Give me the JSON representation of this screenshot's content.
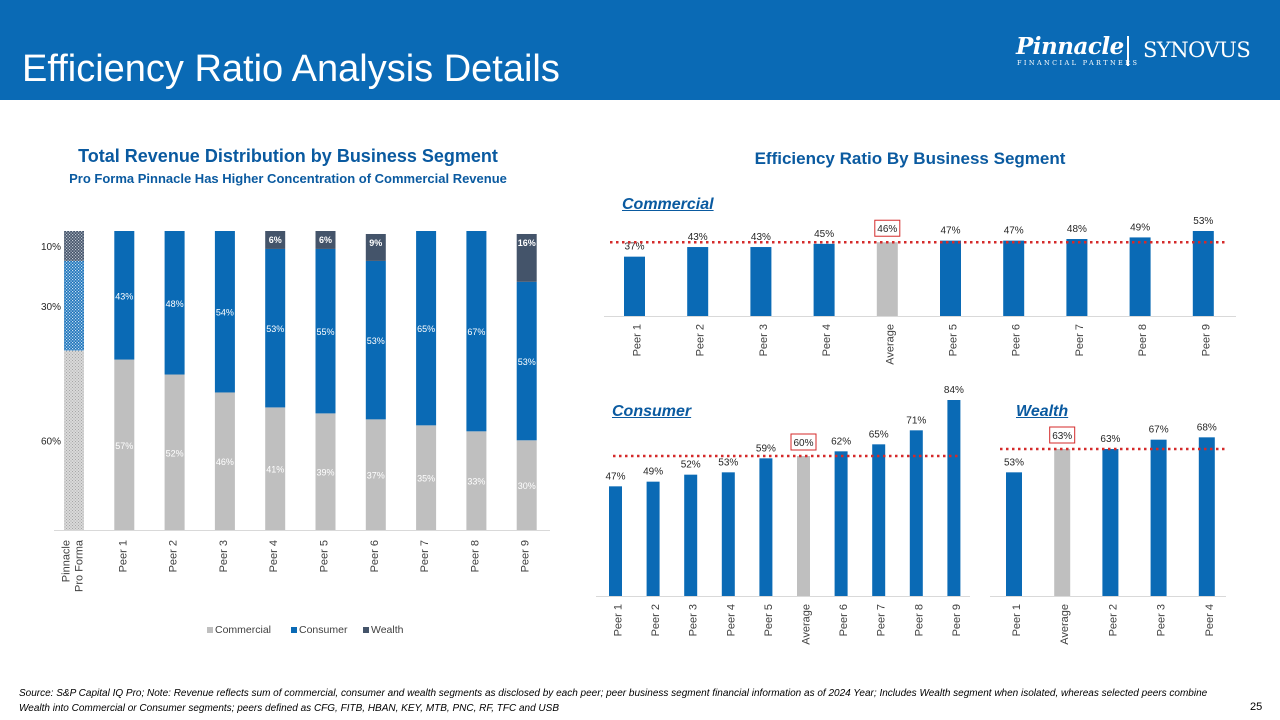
{
  "slide": {
    "title": "Efficiency Ratio Analysis Details",
    "page_number": "25",
    "footnote": "Source: S&P Capital IQ Pro; Note: Revenue reflects sum of commercial, consumer and wealth segments as disclosed by each peer; peer business segment financial information as of 2024 Year; Includes Wealth segment when isolated, whereas selected peers combine Wealth into Commercial or Consumer segments; peers defined as CFG, FITB, HBAN, KEY, MTB, PNC, RF, TFC and USB"
  },
  "logos": {
    "pinnacle": "Pinnacle",
    "pinnacle_sub": "FINANCIAL PARTNERS",
    "synovus": "SYNOVUS"
  },
  "left_panel": {
    "title": "Total Revenue Distribution by Business Segment",
    "subtitle": "Pro Forma Pinnacle Has Higher Concentration of Commercial Revenue"
  },
  "right_panel": {
    "title": "Efficiency Ratio By Business Segment",
    "commercial_label": "Commercial",
    "consumer_label": "Consumer",
    "wealth_label": "Wealth"
  },
  "colors": {
    "banner": "#0a6ab5",
    "commercial": "#bfbfbf",
    "consumer": "#0a6ab5",
    "wealth": "#44546a",
    "average_bar": "#bfbfbf",
    "dotted_line": "#d42a2a",
    "accent_text": "#0a5aa0"
  },
  "chart_data": [
    {
      "id": "revenue-distribution",
      "type": "bar",
      "stacked": true,
      "percent_stacked": true,
      "categories": [
        "Pinnacle Pro Forma",
        "Peer 1",
        "Peer 2",
        "Peer 3",
        "Peer 4",
        "Peer 5",
        "Peer 6",
        "Peer 7",
        "Peer 8",
        "Peer 9"
      ],
      "series": [
        {
          "name": "Commercial",
          "values": [
            60,
            57,
            52,
            46,
            41,
            39,
            37,
            35,
            33,
            30
          ]
        },
        {
          "name": "Consumer",
          "values": [
            30,
            43,
            48,
            54,
            53,
            55,
            53,
            65,
            67,
            53
          ]
        },
        {
          "name": "Wealth",
          "values": [
            10,
            0,
            0,
            0,
            6,
            6,
            9,
            0,
            0,
            16
          ]
        }
      ],
      "label_format": "{v}%",
      "legend": "bottom",
      "ylim": [
        0,
        100
      ]
    },
    {
      "id": "commercial-efficiency",
      "type": "bar",
      "categories": [
        "Peer 1",
        "Peer 2",
        "Peer 3",
        "Peer 4",
        "Average",
        "Peer 5",
        "Peer 6",
        "Peer 7",
        "Peer 8",
        "Peer 9"
      ],
      "values": [
        37,
        43,
        43,
        45,
        46,
        47,
        47,
        48,
        49,
        53
      ],
      "highlight_category": "Average",
      "average_line": 46,
      "label_format": "{v}%",
      "ylim": [
        0,
        53
      ]
    },
    {
      "id": "consumer-efficiency",
      "type": "bar",
      "categories": [
        "Peer 1",
        "Peer 2",
        "Peer 3",
        "Peer 4",
        "Peer 5",
        "Average",
        "Peer 6",
        "Peer 7",
        "Peer 8",
        "Peer 9"
      ],
      "values": [
        47,
        49,
        52,
        53,
        59,
        60,
        62,
        65,
        71,
        84
      ],
      "highlight_category": "Average",
      "average_line": 60,
      "label_format": "{v}%",
      "ylim": [
        0,
        84
      ]
    },
    {
      "id": "wealth-efficiency",
      "type": "bar",
      "categories": [
        "Peer 1",
        "Average",
        "Peer 2",
        "Peer 3",
        "Peer 4"
      ],
      "values": [
        53,
        63,
        63,
        67,
        68
      ],
      "highlight_category": "Average",
      "average_line": 63,
      "label_format": "{v}%",
      "ylim": [
        0,
        84
      ]
    }
  ]
}
